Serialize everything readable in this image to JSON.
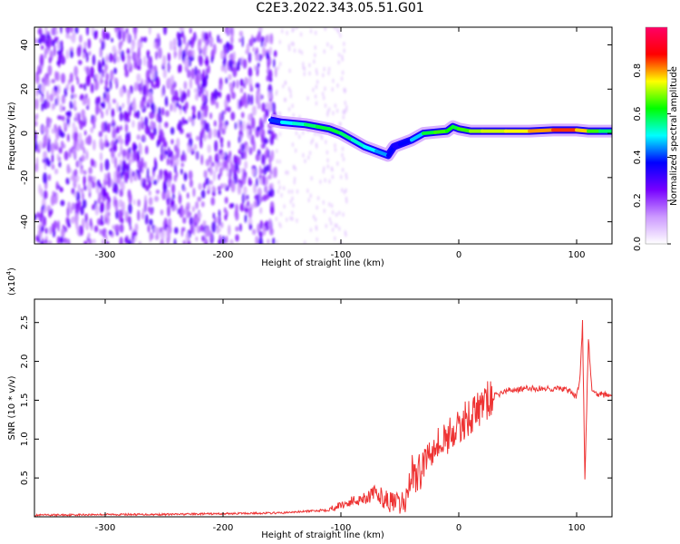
{
  "title": "C2E3.2022.343.05.51.G01",
  "chart_data": [
    {
      "type": "heatmap",
      "xlabel": "Height of straight line (km)",
      "ylabel": "Frequency (Hz)",
      "xlim": [
        -360,
        130
      ],
      "ylim": [
        -50,
        48
      ],
      "xticks": [
        -300,
        -200,
        -100,
        0,
        100
      ],
      "yticks": [
        -40,
        -20,
        0,
        20,
        40
      ],
      "colorbar": {
        "label": "Normalized spectral amplitude",
        "range": [
          0.0,
          1.0
        ],
        "ticks": [
          0.0,
          0.2,
          0.4,
          0.6,
          0.8
        ],
        "colors": [
          "#ffffff",
          "#cc99ff",
          "#7700ff",
          "#0000ff",
          "#00ffff",
          "#00ff00",
          "#ffff00",
          "#ff0000",
          "#ff0066"
        ]
      },
      "signal_trace": {
        "x": [
          -160,
          -150,
          -140,
          -130,
          -120,
          -110,
          -100,
          -90,
          -80,
          -70,
          -60,
          -55,
          -50,
          -40,
          -30,
          -20,
          -10,
          -5,
          0,
          10,
          20,
          40,
          60,
          80,
          100,
          110,
          120,
          130
        ],
        "y": [
          6,
          5,
          4.5,
          4,
          3,
          2,
          0,
          -3,
          -6,
          -8,
          -10,
          -6,
          -5,
          -3,
          0,
          0.5,
          1,
          3,
          2,
          1,
          1,
          1,
          1,
          1.5,
          1.5,
          1,
          1,
          1
        ],
        "amplitude": [
          0.3,
          0.5,
          0.5,
          0.55,
          0.6,
          0.6,
          0.6,
          0.55,
          0.5,
          0.5,
          0.4,
          0.35,
          0.35,
          0.4,
          0.55,
          0.65,
          0.65,
          0.6,
          0.6,
          0.7,
          0.7,
          0.75,
          0.75,
          0.85,
          0.85,
          0.7,
          0.6,
          0.55
        ]
      }
    },
    {
      "type": "line",
      "xlabel": "Height of straight line (km)",
      "ylabel": "SNR (10 * v/v)",
      "ylabel_unit": "(x10",
      "ylabel_unit_exp": "4",
      "ylabel_unit_close": ")",
      "xlim": [
        -360,
        130
      ],
      "ylim": [
        0,
        2.8
      ],
      "xticks": [
        -300,
        -200,
        -100,
        0,
        100
      ],
      "yticks": [
        0.5,
        1.0,
        1.5,
        2.0,
        2.5
      ],
      "ytick_labels": [
        "0.5",
        "1.0",
        "1.5",
        "2.0",
        "2.5"
      ],
      "color": "#ee3333",
      "series": [
        {
          "x": [
            -360,
            -300,
            -250,
            -200,
            -150,
            -120,
            -110,
            -100,
            -90,
            -80,
            -70,
            -60,
            -50,
            -45,
            -40,
            -35,
            -30,
            -25,
            -20,
            -15,
            -10,
            -5,
            0,
            5,
            10,
            15,
            20,
            25,
            30,
            40,
            50,
            60,
            70,
            80,
            90,
            95,
            100,
            103,
            105,
            107,
            110,
            113,
            115,
            120,
            130
          ],
          "y": [
            0.02,
            0.03,
            0.03,
            0.04,
            0.05,
            0.08,
            0.1,
            0.15,
            0.2,
            0.25,
            0.3,
            0.2,
            0.15,
            0.2,
            0.6,
            0.5,
            0.7,
            0.85,
            1.0,
            0.9,
            1.05,
            1.1,
            1.1,
            1.25,
            1.3,
            1.35,
            1.45,
            1.5,
            1.55,
            1.62,
            1.64,
            1.65,
            1.65,
            1.65,
            1.64,
            1.6,
            1.55,
            1.8,
            2.5,
            0.5,
            2.3,
            1.6,
            1.58,
            1.58,
            1.55
          ]
        }
      ]
    }
  ]
}
